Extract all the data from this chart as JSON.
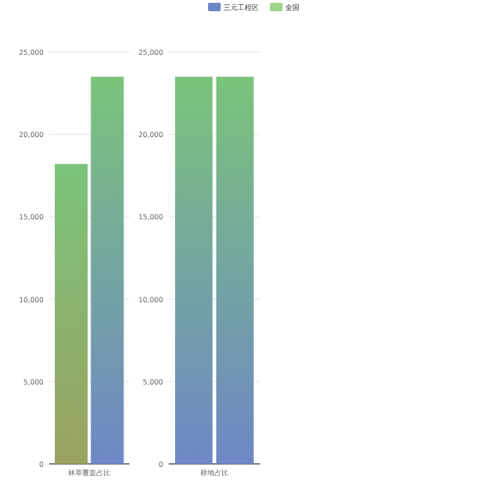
{
  "chart_data": [
    {
      "type": "bar",
      "categories": [
        "林草覆盖占比"
      ],
      "series": [
        {
          "name": "全国",
          "color": "#9ba262",
          "values": [
            18200
          ]
        },
        {
          "name": "三元工程区",
          "color": "#6e87c6",
          "values": [
            23500
          ]
        }
      ],
      "ylim": [
        0,
        25000
      ],
      "yticks": [
        0,
        {
          "value": 5000,
          "label": "5,000"
        },
        {
          "value": 10000,
          "label": "10,000"
        },
        {
          "value": 15000,
          "label": "15,000"
        },
        {
          "value": 20000,
          "label": "20,000"
        },
        {
          "value": 25000,
          "label": "25,000"
        }
      ],
      "grid": "y",
      "legend": "top"
    },
    {
      "type": "bar",
      "categories": [
        "耕地占比"
      ],
      "series": [
        {
          "color": "#6e87c6",
          "values": [
            23500
          ]
        },
        {
          "color": "#6e87c6",
          "values": [
            23500
          ]
        }
      ],
      "ylim": [
        0,
        25000
      ],
      "yticks": [
        0,
        {
          "value": 5000,
          "label": "5,000"
        },
        {
          "value": 10000,
          "label": "10,000"
        },
        {
          "value": 15000,
          "label": "15,000"
        },
        {
          "value": 20000,
          "label": "20,000"
        },
        {
          "value": 25000,
          "label": "25,000"
        }
      ],
      "grid": "y"
    }
  ]
}
